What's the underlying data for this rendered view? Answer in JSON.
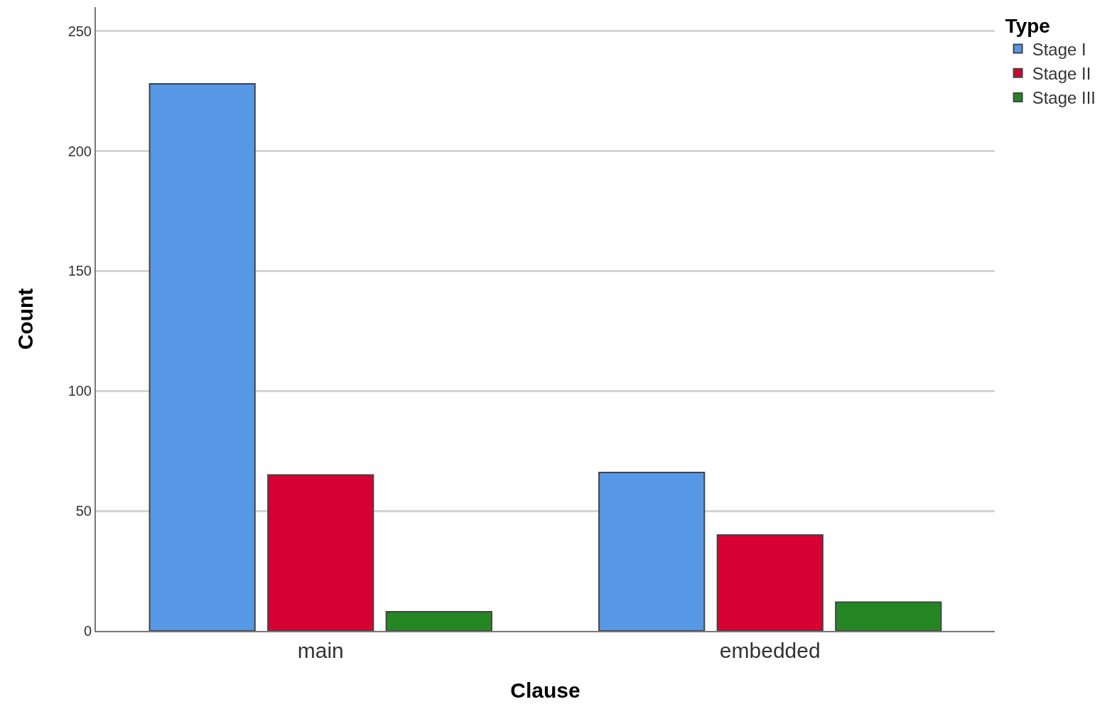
{
  "chart_data": {
    "type": "bar",
    "xlabel": "Clause",
    "ylabel": "Count",
    "legend_title": "Type",
    "categories": [
      "main",
      "embedded"
    ],
    "series": [
      {
        "name": "Stage I",
        "color": "#5698e6",
        "values": [
          228,
          66
        ]
      },
      {
        "name": "Stage II",
        "color": "#d60032",
        "values": [
          65,
          40
        ]
      },
      {
        "name": "Stage III",
        "color": "#248724",
        "values": [
          8,
          12
        ]
      }
    ],
    "ylim": [
      0,
      260
    ],
    "yticks": [
      0,
      50,
      100,
      150,
      200,
      250
    ],
    "grid": "y",
    "legend": "top right"
  }
}
